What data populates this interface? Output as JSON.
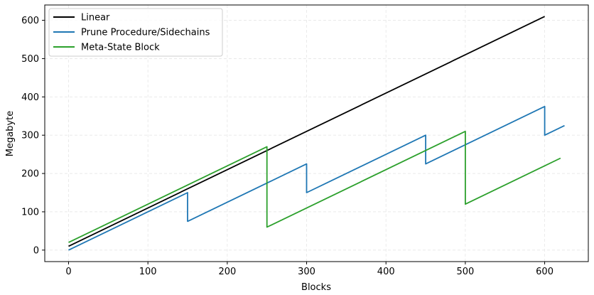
{
  "chart_data": {
    "type": "line",
    "xlabel": "Blocks",
    "ylabel": "Megabyte",
    "xlim": [
      -30,
      655
    ],
    "ylim": [
      -30,
      640
    ],
    "xticks": [
      0,
      100,
      200,
      300,
      400,
      500,
      600
    ],
    "yticks": [
      0,
      100,
      200,
      300,
      400,
      500,
      600
    ],
    "grid": true,
    "legend_position": "top-left",
    "series": [
      {
        "name": "Linear",
        "color": "#000000",
        "points": [
          [
            0,
            10
          ],
          [
            600,
            610
          ]
        ]
      },
      {
        "name": "Prune Procedure/Sidechains",
        "color": "#1f77b4",
        "points": [
          [
            0,
            0
          ],
          [
            150,
            150
          ],
          [
            150,
            75
          ],
          [
            300,
            225
          ],
          [
            300,
            150
          ],
          [
            450,
            300
          ],
          [
            450,
            225
          ],
          [
            600,
            375
          ],
          [
            600,
            300
          ],
          [
            625,
            325
          ]
        ]
      },
      {
        "name": "Meta-State Block",
        "color": "#2ca02c",
        "points": [
          [
            0,
            20
          ],
          [
            250,
            270
          ],
          [
            250,
            60
          ],
          [
            500,
            310
          ],
          [
            500,
            120
          ],
          [
            620,
            240
          ]
        ]
      }
    ]
  }
}
